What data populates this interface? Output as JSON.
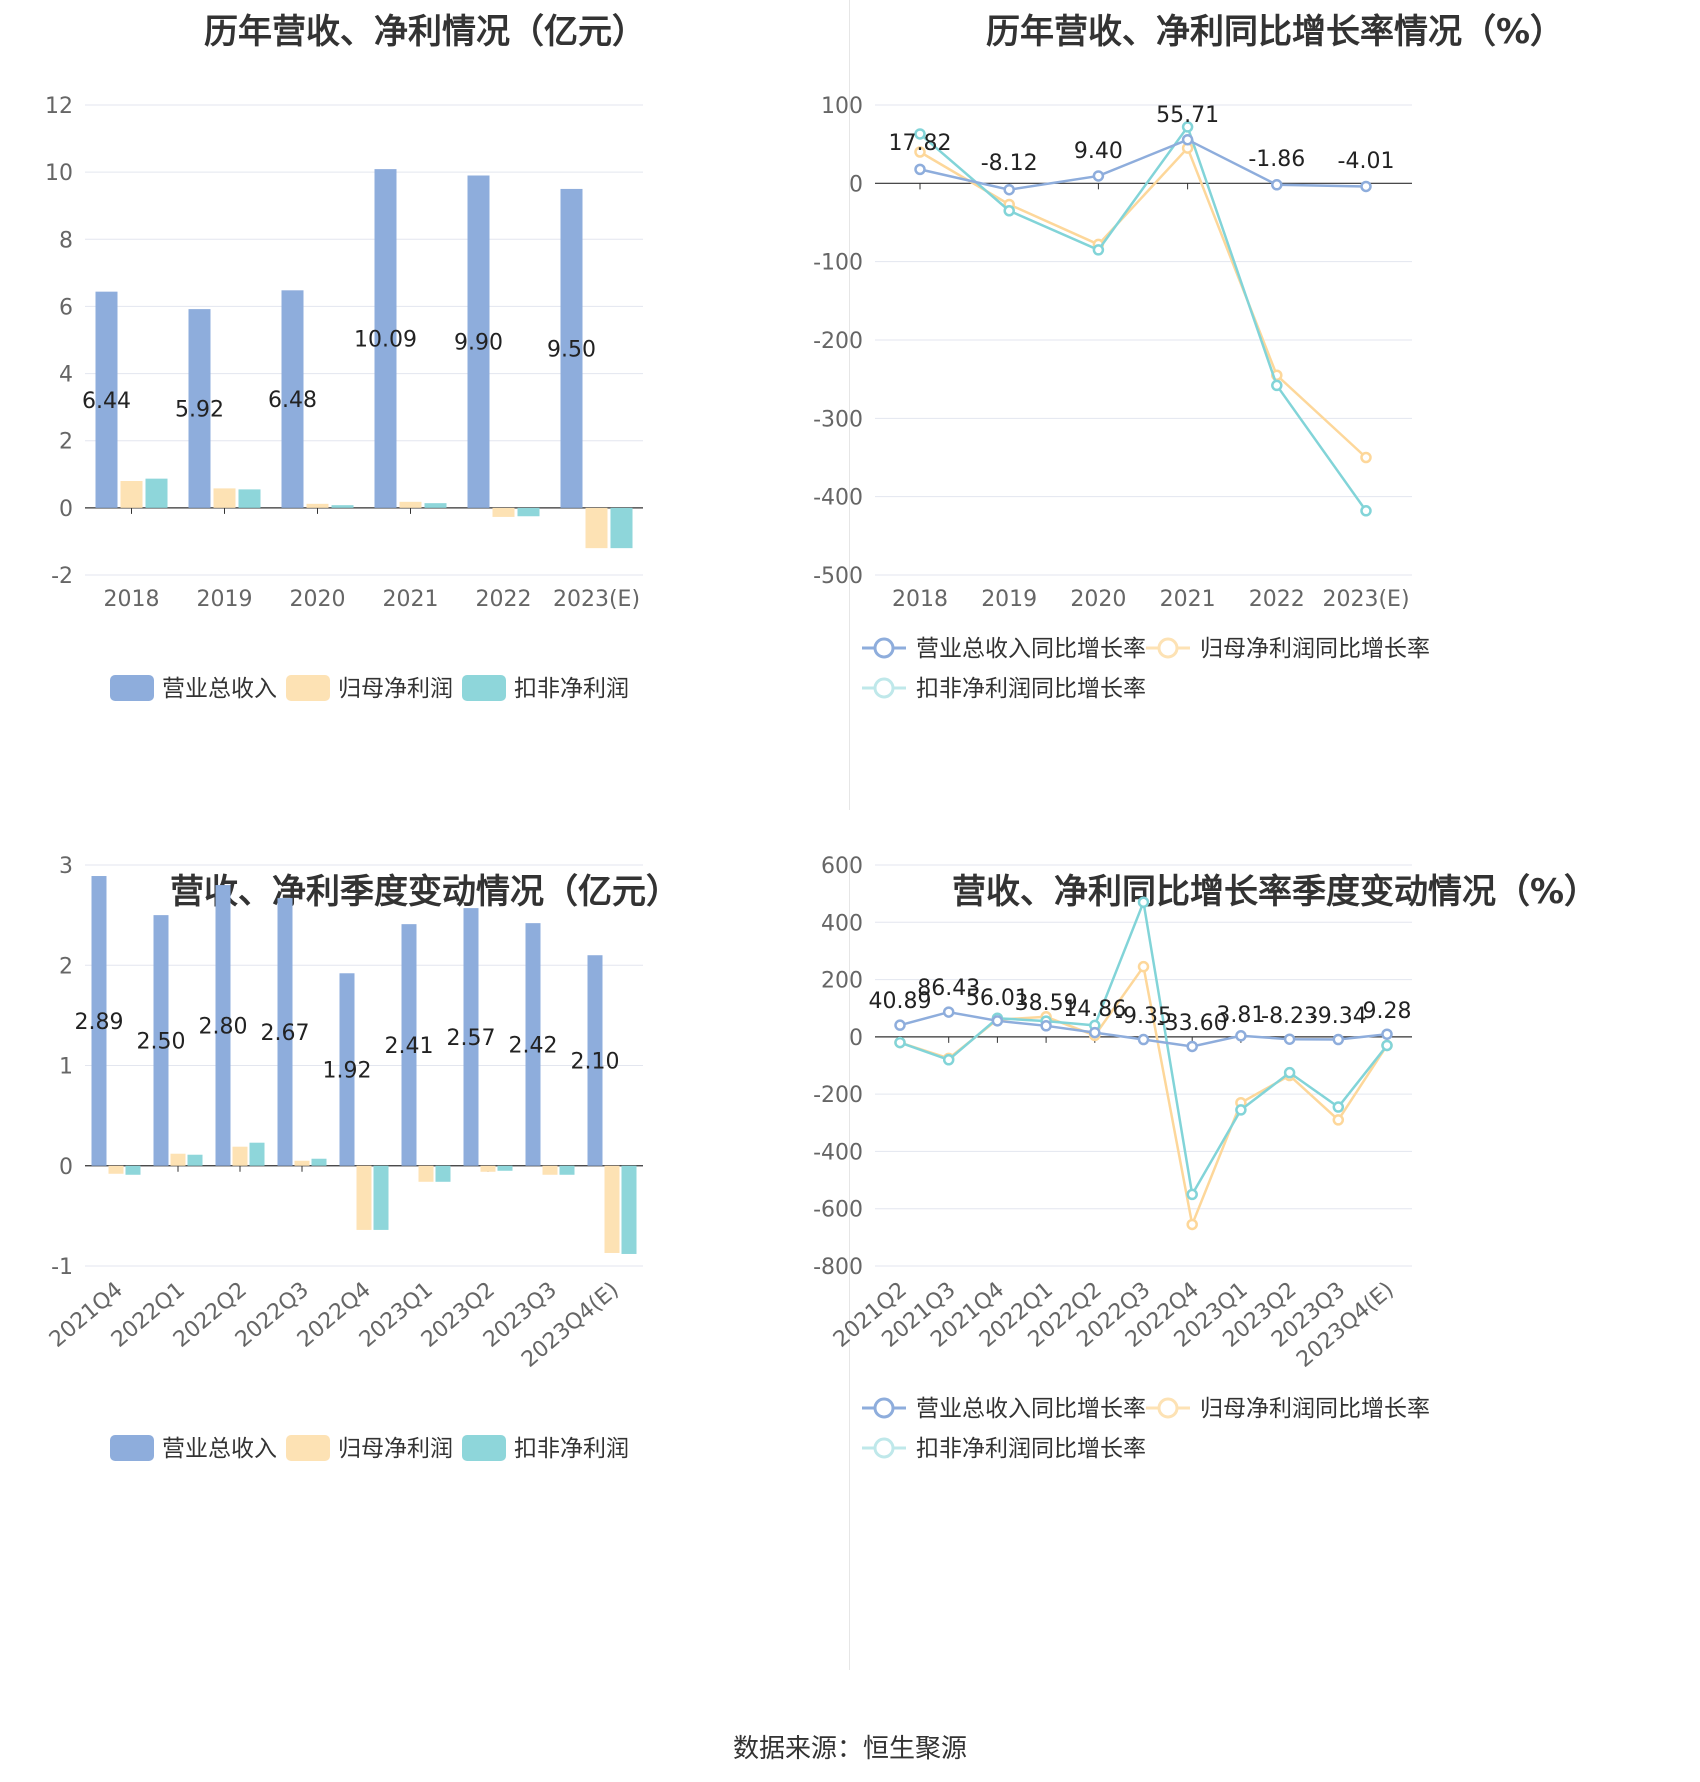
{
  "colors": {
    "revenue": "#8eaddc",
    "net_profit": "#fde2b4",
    "deducted_profit": "#8ed6da",
    "rev_line": "#8eaddc",
    "np_line": "#fdd79a",
    "dp_line": "#82d4d8"
  },
  "source": "数据来源：恒生聚源",
  "chart_data": [
    {
      "type": "bar",
      "title": "历年营收、净利情况（亿元）",
      "categories": [
        "2018",
        "2019",
        "2020",
        "2021",
        "2022",
        "2023(E)"
      ],
      "ylim": [
        -2,
        12
      ],
      "yticks": [
        "-2",
        "0",
        "2",
        "4",
        "6",
        "8",
        "10",
        "12"
      ],
      "series": [
        {
          "name": "营业总收入",
          "values": [
            6.44,
            5.92,
            6.48,
            10.09,
            9.9,
            9.5
          ],
          "labels": [
            "6.44",
            "5.92",
            "6.48",
            "10.09",
            "9.90",
            "9.50"
          ]
        },
        {
          "name": "归母净利润",
          "values": [
            0.8,
            0.58,
            0.12,
            0.18,
            -0.27,
            -1.2
          ]
        },
        {
          "name": "扣非净利润",
          "values": [
            0.87,
            0.55,
            0.08,
            0.14,
            -0.25,
            -1.2
          ]
        }
      ]
    },
    {
      "type": "line",
      "title": "历年营收、净利同比增长率情况（%）",
      "categories": [
        "2018",
        "2019",
        "2020",
        "2021",
        "2022",
        "2023(E)"
      ],
      "ylim": [
        -500,
        100
      ],
      "yticks": [
        "-500",
        "-400",
        "-300",
        "-200",
        "-100",
        "0",
        "100"
      ],
      "series": [
        {
          "name": "营业总收入同比增长率",
          "values": [
            17.82,
            -8.12,
            9.4,
            55.71,
            -1.86,
            -4.01
          ],
          "labels": [
            "17.82",
            "-8.12",
            "9.40",
            "55.71",
            "-1.86",
            "-4.01"
          ]
        },
        {
          "name": "归母净利润同比增长率",
          "values": [
            40,
            -27,
            -78,
            45,
            -245,
            -350
          ]
        },
        {
          "name": "扣非净利润同比增长率",
          "values": [
            63,
            -35,
            -85,
            72,
            -258,
            -418
          ]
        }
      ]
    },
    {
      "type": "bar",
      "title": "营收、净利季度变动情况（亿元）",
      "categories": [
        "2021Q4",
        "2022Q1",
        "2022Q2",
        "2022Q3",
        "2022Q4",
        "2023Q1",
        "2023Q2",
        "2023Q3",
        "2023Q4(E)"
      ],
      "ylim": [
        -1,
        3
      ],
      "yticks": [
        "-1",
        "0",
        "1",
        "2",
        "3"
      ],
      "series": [
        {
          "name": "营业总收入",
          "values": [
            2.89,
            2.5,
            2.8,
            2.67,
            1.92,
            2.41,
            2.57,
            2.42,
            2.1
          ],
          "labels": [
            "2.89",
            "2.50",
            "2.80",
            "2.67",
            "1.92",
            "2.41",
            "2.57",
            "2.42",
            "2.10"
          ]
        },
        {
          "name": "归母净利润",
          "values": [
            -0.08,
            0.12,
            0.19,
            0.05,
            -0.64,
            -0.16,
            -0.06,
            -0.09,
            -0.87
          ]
        },
        {
          "name": "扣非净利润",
          "values": [
            -0.09,
            0.11,
            0.23,
            0.07,
            -0.64,
            -0.16,
            -0.05,
            -0.09,
            -0.88
          ]
        }
      ]
    },
    {
      "type": "line",
      "title": "营收、净利同比增长率季度变动情况（%）",
      "categories": [
        "2021Q2",
        "2021Q3",
        "2021Q4",
        "2022Q1",
        "2022Q2",
        "2022Q3",
        "2022Q4",
        "2023Q1",
        "2023Q2",
        "2023Q3",
        "2023Q4(E)"
      ],
      "ylim": [
        -800,
        600
      ],
      "yticks": [
        "-800",
        "-600",
        "-400",
        "-200",
        "0",
        "200",
        "400",
        "600"
      ],
      "series": [
        {
          "name": "营业总收入同比增长率",
          "values": [
            40.89,
            86.43,
            56.01,
            38.59,
            14.86,
            -9.35,
            -33.6,
            3.81,
            -8.23,
            -9.34,
            9.28
          ],
          "labels": [
            "40.89",
            "86.43",
            "56.01",
            "38.59",
            "14.86",
            "-9.35",
            "-33.60",
            "3.81",
            "-8.23",
            "-9.34",
            "9.28"
          ]
        },
        {
          "name": "归母净利润同比增长率",
          "values": [
            -20,
            -75,
            60,
            70,
            5,
            245,
            -655,
            -230,
            -135,
            -290,
            -30
          ]
        },
        {
          "name": "扣非净利润同比增长率",
          "values": [
            -20,
            -80,
            65,
            55,
            40,
            470,
            -550,
            -255,
            -125,
            -245,
            -30
          ]
        }
      ]
    }
  ]
}
